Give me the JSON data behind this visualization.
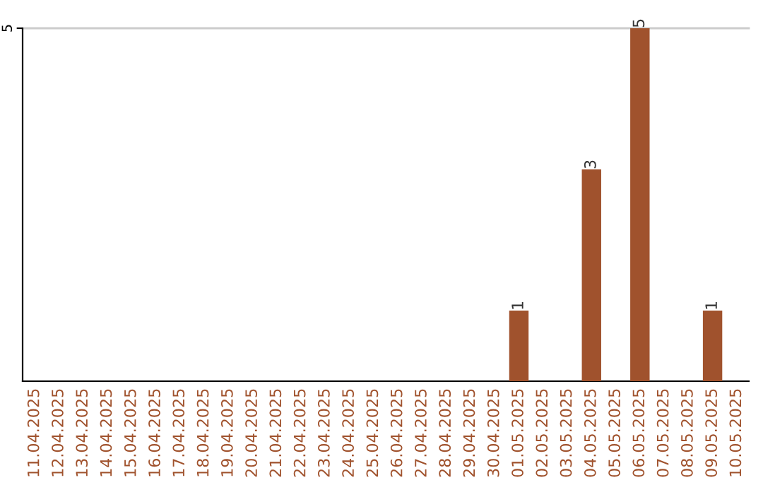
{
  "chart_data": {
    "type": "bar",
    "categories": [
      "11.04.2025",
      "12.04.2025",
      "13.04.2025",
      "14.04.2025",
      "15.04.2025",
      "16.04.2025",
      "17.04.2025",
      "18.04.2025",
      "19.04.2025",
      "20.04.2025",
      "21.04.2025",
      "22.04.2025",
      "23.04.2025",
      "24.04.2025",
      "25.04.2025",
      "26.04.2025",
      "27.04.2025",
      "28.04.2025",
      "29.04.2025",
      "30.04.2025",
      "01.05.2025",
      "02.05.2025",
      "03.05.2025",
      "04.05.2025",
      "05.05.2025",
      "06.05.2025",
      "07.05.2025",
      "08.05.2025",
      "09.05.2025",
      "10.05.2025"
    ],
    "values": [
      null,
      null,
      null,
      null,
      null,
      null,
      null,
      null,
      null,
      null,
      null,
      null,
      null,
      null,
      null,
      null,
      null,
      null,
      null,
      null,
      1,
      null,
      null,
      3,
      null,
      5,
      null,
      null,
      1,
      null
    ],
    "color": "#a0522d",
    "ylim": [
      0,
      5
    ],
    "yticks": [
      5
    ],
    "ref_lines": [
      {
        "axis": "y",
        "value": 5,
        "color": "#cccccc"
      }
    ],
    "data_labels": true
  }
}
